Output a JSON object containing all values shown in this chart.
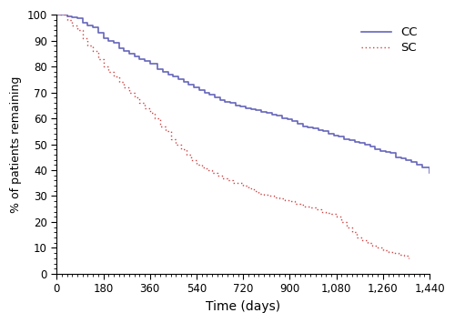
{
  "title": "",
  "xlabel": "Time (days)",
  "ylabel": "% of patients remaining",
  "xlim": [
    0,
    1440
  ],
  "ylim": [
    0,
    100
  ],
  "xticks": [
    0,
    180,
    360,
    540,
    720,
    900,
    1080,
    1260,
    1440
  ],
  "yticks": [
    0,
    10,
    20,
    30,
    40,
    50,
    60,
    70,
    80,
    90,
    100
  ],
  "cc_color": "#6666bb",
  "sc_color": "#cc4444",
  "cc_label": "CC",
  "sc_label": "SC",
  "figsize": [
    5.0,
    3.55
  ],
  "dpi": 100,
  "cc_x": [
    0,
    20,
    40,
    60,
    80,
    100,
    120,
    140,
    160,
    180,
    200,
    220,
    240,
    260,
    280,
    300,
    320,
    340,
    360,
    390,
    410,
    430,
    450,
    470,
    490,
    510,
    530,
    550,
    570,
    590,
    610,
    630,
    650,
    670,
    690,
    710,
    730,
    750,
    770,
    790,
    810,
    830,
    850,
    870,
    890,
    910,
    930,
    950,
    970,
    990,
    1010,
    1030,
    1050,
    1070,
    1090,
    1110,
    1130,
    1150,
    1170,
    1190,
    1210,
    1230,
    1250,
    1270,
    1290,
    1310,
    1330,
    1350,
    1370,
    1390,
    1410,
    1440
  ],
  "cc_y": [
    100,
    100,
    99.5,
    99,
    98.5,
    97,
    96,
    95,
    93,
    91,
    90,
    89,
    87,
    86,
    85,
    84,
    83,
    82,
    81,
    79,
    78,
    77,
    76,
    75,
    74,
    73,
    72,
    71,
    70,
    69,
    68,
    67,
    66.5,
    66,
    65,
    64.5,
    64,
    63.5,
    63,
    62.5,
    62,
    61.5,
    61,
    60,
    59.5,
    59,
    58,
    57,
    56.5,
    56,
    55.5,
    55,
    54,
    53.5,
    53,
    52,
    51.5,
    51,
    50.5,
    50,
    49,
    48,
    47.5,
    47,
    46.5,
    45,
    44.5,
    44,
    43,
    42,
    41,
    39
  ],
  "sc_x": [
    0,
    20,
    40,
    60,
    80,
    100,
    120,
    140,
    160,
    180,
    200,
    220,
    240,
    260,
    280,
    300,
    320,
    340,
    360,
    380,
    400,
    420,
    440,
    460,
    480,
    500,
    520,
    540,
    560,
    580,
    600,
    620,
    640,
    660,
    680,
    700,
    720,
    740,
    760,
    780,
    800,
    820,
    840,
    860,
    880,
    900,
    920,
    940,
    960,
    980,
    1000,
    1020,
    1040,
    1060,
    1080,
    1100,
    1120,
    1140,
    1160,
    1180,
    1200,
    1220,
    1240,
    1260,
    1280,
    1300,
    1320,
    1340,
    1360
  ],
  "sc_y": [
    100,
    100,
    98,
    96,
    94,
    91,
    88,
    86,
    83,
    80,
    78,
    76,
    74,
    72,
    70,
    68,
    66,
    64,
    62,
    60,
    57,
    55,
    52,
    50,
    48,
    46,
    44,
    42,
    41,
    40,
    39,
    38,
    37,
    36,
    35,
    35,
    34,
    33,
    32,
    31,
    30.5,
    30,
    29.5,
    29,
    28.5,
    28,
    27,
    26.5,
    26,
    25.5,
    25,
    24,
    23.5,
    23,
    22,
    20,
    18,
    16,
    14,
    13,
    12,
    11,
    10,
    9,
    8.5,
    8,
    7.5,
    7,
    6
  ]
}
